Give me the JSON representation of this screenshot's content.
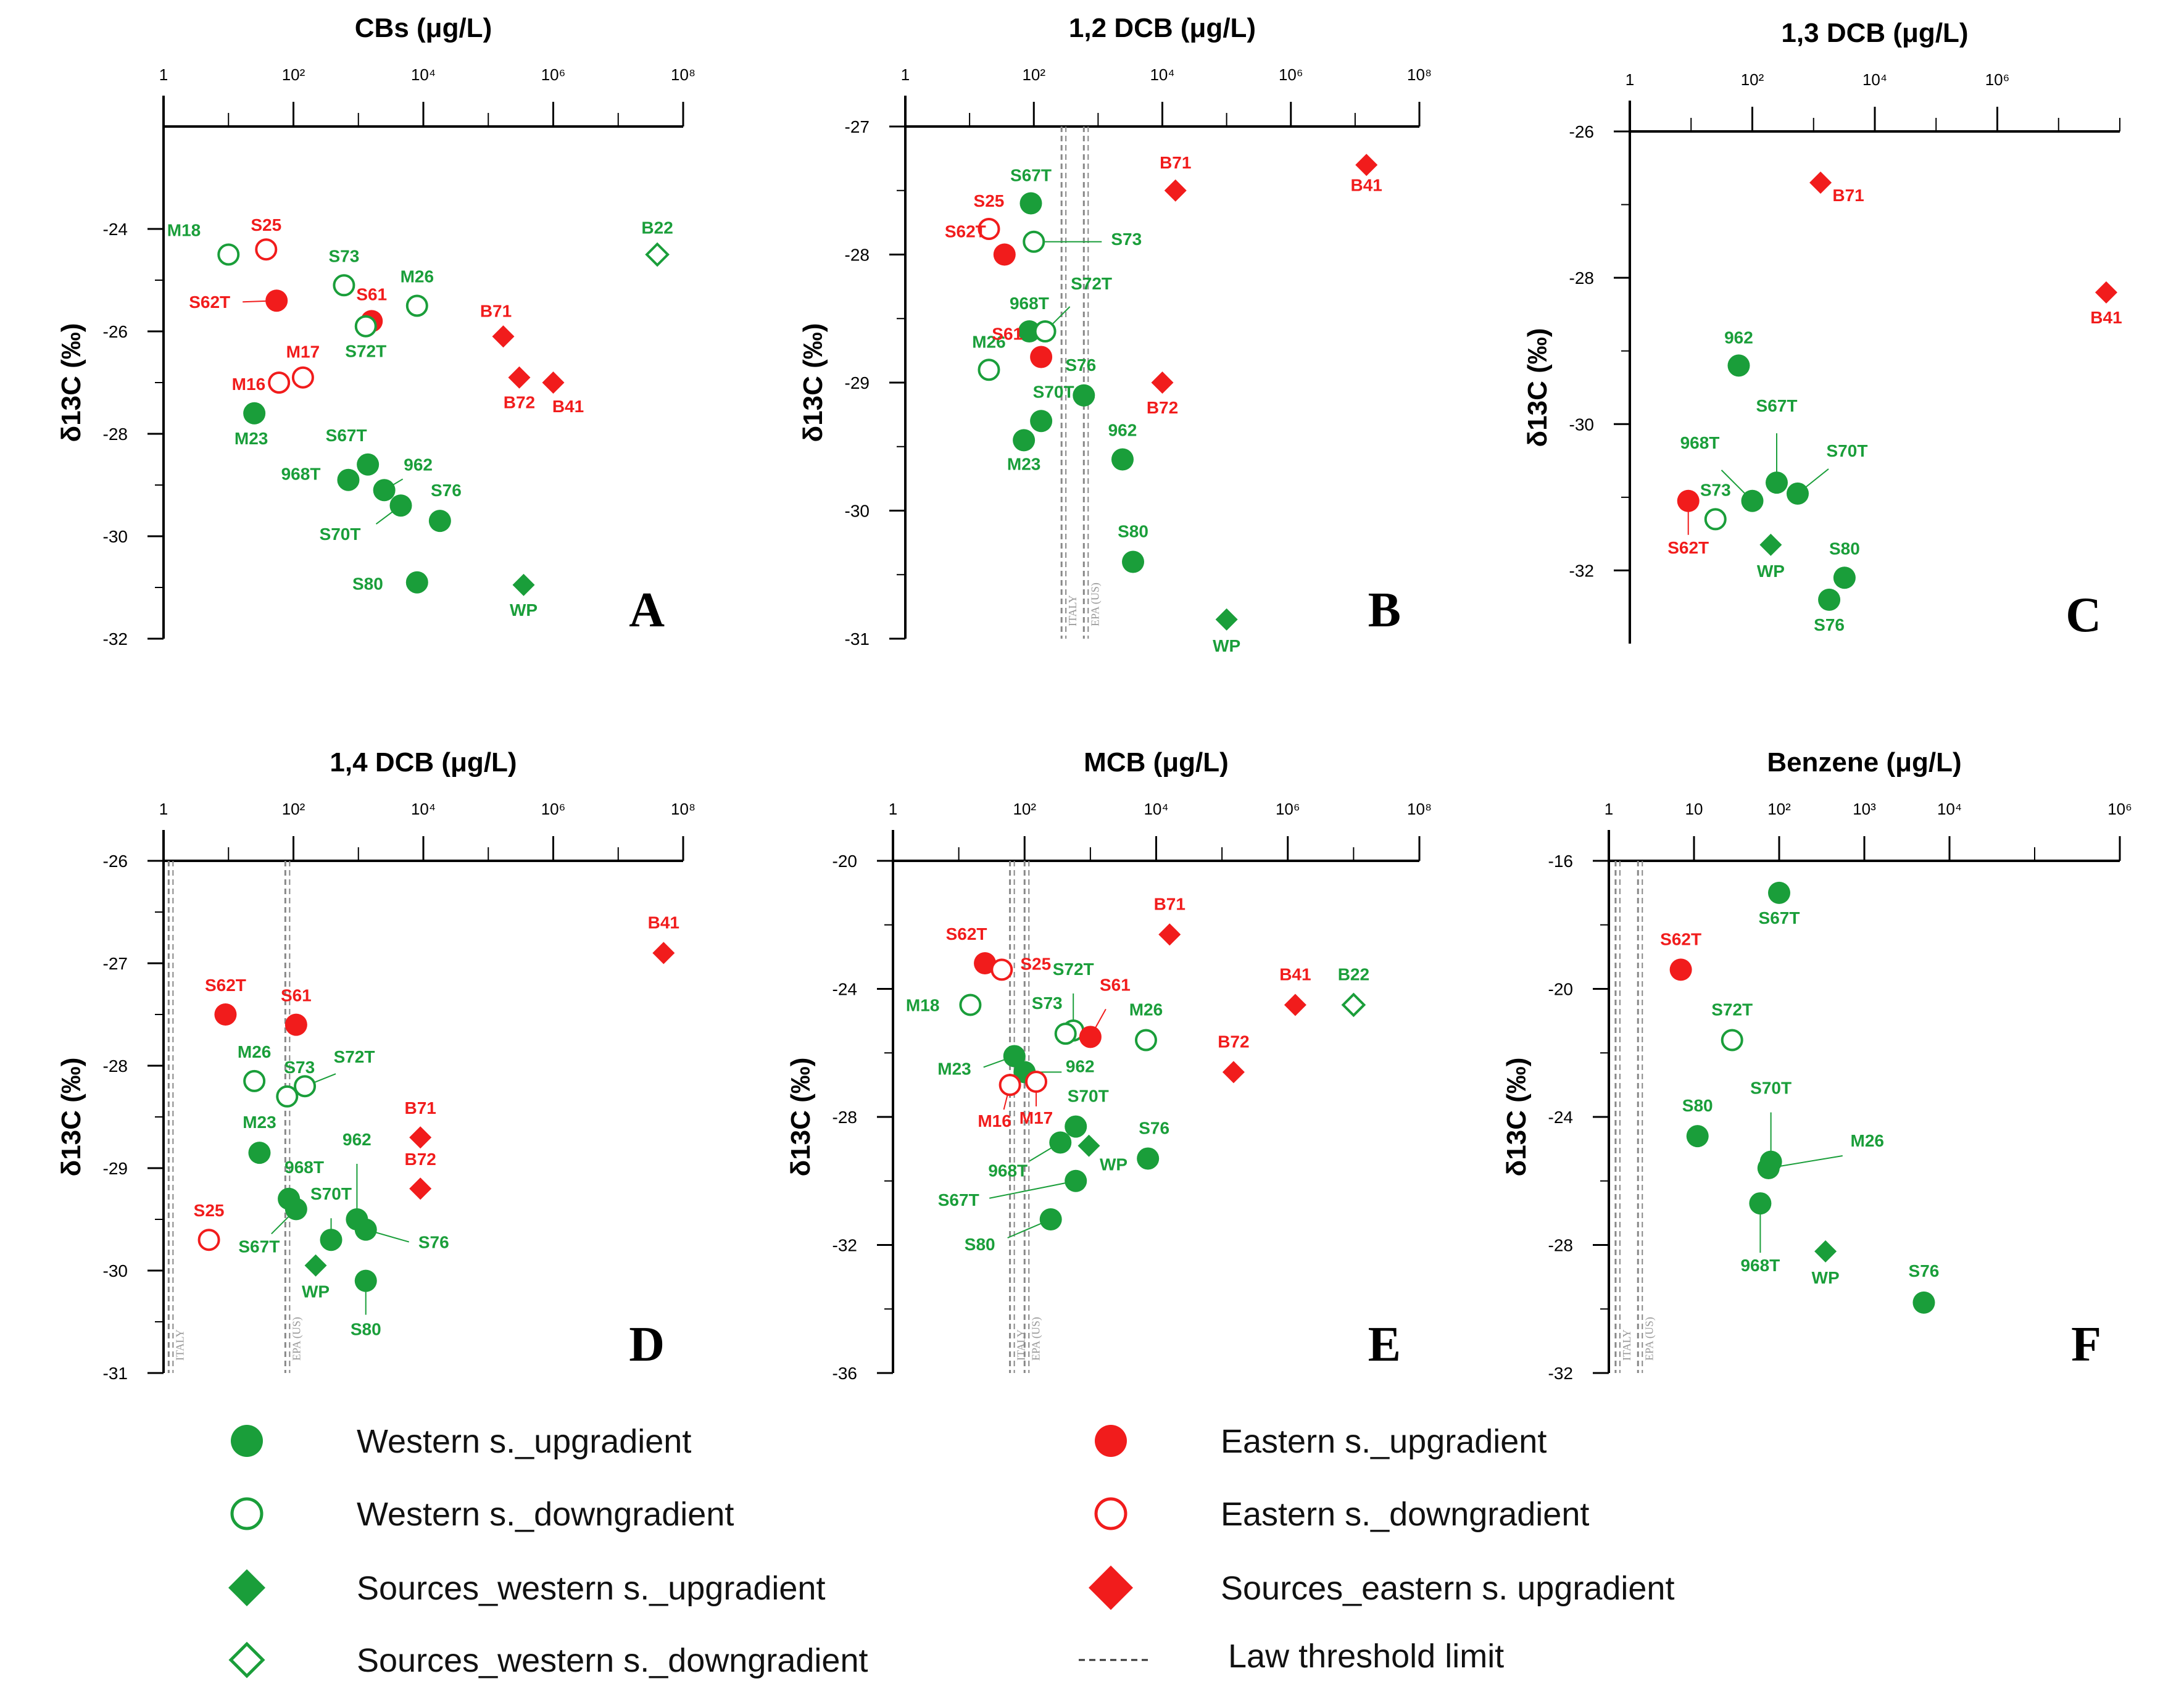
{
  "colors": {
    "western": "#1a9e3a",
    "eastern": "#f11c1c",
    "axis": "#000000",
    "threshold": "#888888"
  },
  "chart_data": [
    {
      "panel": "A",
      "type": "scatter",
      "title": "CBs (μg/L)",
      "ylabel": "δ13C (‰)",
      "xscale": "log",
      "xlim": [
        1,
        100000000
      ],
      "ylim": [
        -32,
        -22
      ],
      "xticks": [
        {
          "v": 1,
          "label": "1"
        },
        {
          "v": 100,
          "label": "10²"
        },
        {
          "v": 10000,
          "label": "10⁴"
        },
        {
          "v": 1000000,
          "label": "10⁶"
        },
        {
          "v": 100000000,
          "label": "10⁸"
        }
      ],
      "yticks": [
        {
          "v": -24,
          "label": "-24"
        },
        {
          "v": -26,
          "label": "-26"
        },
        {
          "v": -28,
          "label": "-28"
        },
        {
          "v": -30,
          "label": "-30"
        },
        {
          "v": -32,
          "label": "-32"
        }
      ],
      "thresholds": [],
      "points": [
        {
          "label": "M18",
          "x": 10,
          "y": -24.5,
          "group": "western_down"
        },
        {
          "label": "S25",
          "x": 38,
          "y": -24.4,
          "group": "eastern_down"
        },
        {
          "label": "S73",
          "x": 600,
          "y": -25.1,
          "group": "western_down"
        },
        {
          "label": "M26",
          "x": 8000,
          "y": -25.5,
          "group": "western_down"
        },
        {
          "label": "S62T",
          "x": 55,
          "y": -25.4,
          "group": "eastern_up"
        },
        {
          "label": "S61",
          "x": 1600,
          "y": -25.8,
          "group": "eastern_up"
        },
        {
          "label": "S72T",
          "x": 1300,
          "y": -25.9,
          "group": "western_down"
        },
        {
          "label": "M17",
          "x": 140,
          "y": -26.9,
          "group": "eastern_down"
        },
        {
          "label": "M16",
          "x": 60,
          "y": -27.0,
          "group": "eastern_down"
        },
        {
          "label": "B71",
          "x": 170000,
          "y": -26.1,
          "group": "eastern_src"
        },
        {
          "label": "B72",
          "x": 300000,
          "y": -26.9,
          "group": "eastern_src"
        },
        {
          "label": "B41",
          "x": 1000000,
          "y": -27.0,
          "group": "eastern_src"
        },
        {
          "label": "B22",
          "x": 40000000,
          "y": -24.5,
          "group": "western_src_down"
        },
        {
          "label": "M23",
          "x": 25,
          "y": -27.6,
          "group": "western_up"
        },
        {
          "label": "S67T",
          "x": 1400,
          "y": -28.6,
          "group": "western_up"
        },
        {
          "label": "968T",
          "x": 700,
          "y": -28.9,
          "group": "western_up"
        },
        {
          "label": "962",
          "x": 2500,
          "y": -29.1,
          "group": "western_up"
        },
        {
          "label": "S70T",
          "x": 4500,
          "y": -29.4,
          "group": "western_up"
        },
        {
          "label": "S76",
          "x": 18000,
          "y": -29.7,
          "group": "western_up"
        },
        {
          "label": "S80",
          "x": 8000,
          "y": -30.9,
          "group": "western_up"
        },
        {
          "label": "WP",
          "x": 350000,
          "y": -30.95,
          "group": "western_src"
        }
      ]
    },
    {
      "panel": "B",
      "type": "scatter",
      "title": "1,2 DCB (μg/L)",
      "ylabel": "δ13C (‰)",
      "xscale": "log",
      "xlim": [
        1,
        100000000
      ],
      "ylim": [
        -31,
        -27
      ],
      "xticks": [
        {
          "v": 1,
          "label": "1"
        },
        {
          "v": 100,
          "label": "10²"
        },
        {
          "v": 10000,
          "label": "10⁴"
        },
        {
          "v": 1000000,
          "label": "10⁶"
        },
        {
          "v": 100000000,
          "label": "10⁸"
        }
      ],
      "yticks": [
        {
          "v": -27,
          "label": "-27"
        },
        {
          "v": -28,
          "label": "-28"
        },
        {
          "v": -29,
          "label": "-29"
        },
        {
          "v": -30,
          "label": "-30"
        },
        {
          "v": -31,
          "label": "-31"
        }
      ],
      "thresholds": [
        {
          "x": 270,
          "label": "ITALY"
        },
        {
          "x": 600,
          "label": "EPA (US)"
        }
      ],
      "points": [
        {
          "label": "S67T",
          "x": 90,
          "y": -27.6,
          "group": "western_up"
        },
        {
          "label": "S25",
          "x": 20,
          "y": -27.8,
          "group": "eastern_down"
        },
        {
          "label": "S73",
          "x": 100,
          "y": -27.9,
          "group": "western_down"
        },
        {
          "label": "S62T",
          "x": 35,
          "y": -28.0,
          "group": "eastern_up"
        },
        {
          "label": "968T",
          "x": 85,
          "y": -28.6,
          "group": "western_up"
        },
        {
          "label": "S72T",
          "x": 150,
          "y": -28.6,
          "group": "western_down"
        },
        {
          "label": "M26",
          "x": 20,
          "y": -28.9,
          "group": "western_down"
        },
        {
          "label": "S61",
          "x": 130,
          "y": -28.8,
          "group": "eastern_up"
        },
        {
          "label": "S76",
          "x": 600,
          "y": -29.1,
          "group": "western_up"
        },
        {
          "label": "S70T",
          "x": 130,
          "y": -29.3,
          "group": "western_up"
        },
        {
          "label": "M23",
          "x": 70,
          "y": -29.45,
          "group": "western_up"
        },
        {
          "label": "962",
          "x": 2400,
          "y": -29.6,
          "group": "western_up"
        },
        {
          "label": "S80",
          "x": 3500,
          "y": -30.4,
          "group": "western_up"
        },
        {
          "label": "WP",
          "x": 100000,
          "y": -30.85,
          "group": "western_src"
        },
        {
          "label": "B71",
          "x": 16000,
          "y": -27.5,
          "group": "eastern_src"
        },
        {
          "label": "B72",
          "x": 10000,
          "y": -29.0,
          "group": "eastern_src"
        },
        {
          "label": "B41",
          "x": 15000000,
          "y": -27.3,
          "group": "eastern_src"
        }
      ]
    },
    {
      "panel": "C",
      "type": "scatter",
      "title": "1,3 DCB (μg/L)",
      "ylabel": "δ13C (‰)",
      "xscale": "log",
      "xlim": [
        1,
        100000000
      ],
      "ylim": [
        -33,
        -26
      ],
      "xticks": [
        {
          "v": 1,
          "label": "1"
        },
        {
          "v": 100,
          "label": "10²"
        },
        {
          "v": 10000,
          "label": "10⁴"
        },
        {
          "v": 1000000,
          "label": "10⁶"
        }
      ],
      "yticks": [
        {
          "v": -26,
          "label": "-26"
        },
        {
          "v": -28,
          "label": "-28"
        },
        {
          "v": -30,
          "label": "-30"
        },
        {
          "v": -32,
          "label": "-32"
        }
      ],
      "thresholds": [],
      "points": [
        {
          "label": "B71",
          "x": 1300,
          "y": -26.7,
          "group": "eastern_src"
        },
        {
          "label": "B41",
          "x": 60000000,
          "y": -28.2,
          "group": "eastern_src"
        },
        {
          "label": "962",
          "x": 60,
          "y": -29.2,
          "group": "western_up"
        },
        {
          "label": "S67T",
          "x": 250,
          "y": -30.8,
          "group": "western_up"
        },
        {
          "label": "968T",
          "x": 100,
          "y": -31.05,
          "group": "western_up"
        },
        {
          "label": "S70T",
          "x": 550,
          "y": -30.95,
          "group": "western_up"
        },
        {
          "label": "S73",
          "x": 25,
          "y": -31.3,
          "group": "western_down"
        },
        {
          "label": "S62T",
          "x": 9,
          "y": -31.05,
          "group": "eastern_up"
        },
        {
          "label": "WP",
          "x": 200,
          "y": -31.65,
          "group": "western_src"
        },
        {
          "label": "S80",
          "x": 3200,
          "y": -32.1,
          "group": "western_up"
        },
        {
          "label": "S76",
          "x": 1800,
          "y": -32.4,
          "group": "western_up"
        }
      ]
    },
    {
      "panel": "D",
      "type": "scatter",
      "title": "1,4 DCB (μg/L)",
      "ylabel": "δ13C (‰)",
      "xscale": "log",
      "xlim": [
        1,
        100000000
      ],
      "ylim": [
        -31,
        -26
      ],
      "xticks": [
        {
          "v": 1,
          "label": "1"
        },
        {
          "v": 100,
          "label": "10²"
        },
        {
          "v": 10000,
          "label": "10⁴"
        },
        {
          "v": 1000000,
          "label": "10⁶"
        },
        {
          "v": 100000000,
          "label": "10⁸"
        }
      ],
      "yticks": [
        {
          "v": -26,
          "label": "-26"
        },
        {
          "v": -27,
          "label": "-27"
        },
        {
          "v": -28,
          "label": "-28"
        },
        {
          "v": -29,
          "label": "-29"
        },
        {
          "v": -30,
          "label": "-30"
        },
        {
          "v": -31,
          "label": "-31"
        }
      ],
      "thresholds": [
        {
          "x": 1.2,
          "label": "ITALY"
        },
        {
          "x": 75,
          "label": "EPA (US)"
        }
      ],
      "points": [
        {
          "label": "B41",
          "x": 50000000,
          "y": -26.9,
          "group": "eastern_src"
        },
        {
          "label": "S62T",
          "x": 9,
          "y": -27.5,
          "group": "eastern_up"
        },
        {
          "label": "S61",
          "x": 110,
          "y": -27.6,
          "group": "eastern_up"
        },
        {
          "label": "M26",
          "x": 25,
          "y": -28.15,
          "group": "western_down"
        },
        {
          "label": "S73",
          "x": 80,
          "y": -28.3,
          "group": "western_down"
        },
        {
          "label": "S72T",
          "x": 150,
          "y": -28.2,
          "group": "western_down"
        },
        {
          "label": "M23",
          "x": 30,
          "y": -28.85,
          "group": "western_up"
        },
        {
          "label": "968T",
          "x": 85,
          "y": -29.3,
          "group": "western_up"
        },
        {
          "label": "S67T",
          "x": 110,
          "y": -29.4,
          "group": "western_up"
        },
        {
          "label": "962",
          "x": 950,
          "y": -29.5,
          "group": "western_up"
        },
        {
          "label": "S70T",
          "x": 380,
          "y": -29.7,
          "group": "western_up"
        },
        {
          "label": "S76",
          "x": 1300,
          "y": -29.6,
          "group": "western_up"
        },
        {
          "label": "S25",
          "x": 5,
          "y": -29.7,
          "group": "eastern_down"
        },
        {
          "label": "WP",
          "x": 220,
          "y": -29.95,
          "group": "western_src"
        },
        {
          "label": "S80",
          "x": 1300,
          "y": -30.1,
          "group": "western_up"
        },
        {
          "label": "B71",
          "x": 9000,
          "y": -28.7,
          "group": "eastern_src"
        },
        {
          "label": "B72",
          "x": 9000,
          "y": -29.2,
          "group": "eastern_src"
        }
      ]
    },
    {
      "panel": "E",
      "type": "scatter",
      "title": "MCB (μg/L)",
      "ylabel": "δ13C (‰)",
      "xscale": "log",
      "xlim": [
        1,
        100000000
      ],
      "ylim": [
        -36,
        -20
      ],
      "xticks": [
        {
          "v": 1,
          "label": "1"
        },
        {
          "v": 100,
          "label": "10²"
        },
        {
          "v": 10000,
          "label": "10⁴"
        },
        {
          "v": 1000000,
          "label": "10⁶"
        },
        {
          "v": 100000000,
          "label": "10⁸"
        }
      ],
      "yticks": [
        {
          "v": -20,
          "label": "-20"
        },
        {
          "v": -24,
          "label": "-24"
        },
        {
          "v": -28,
          "label": "-28"
        },
        {
          "v": -32,
          "label": "-32"
        },
        {
          "v": -36,
          "label": "-36"
        }
      ],
      "thresholds": [
        {
          "x": 60,
          "label": "ITALY"
        },
        {
          "x": 100,
          "label": "EPA (US)"
        }
      ],
      "points": [
        {
          "label": "S62T",
          "x": 25,
          "y": -23.2,
          "group": "eastern_up"
        },
        {
          "label": "S25",
          "x": 45,
          "y": -23.4,
          "group": "eastern_down"
        },
        {
          "label": "B71",
          "x": 16000,
          "y": -22.3,
          "group": "eastern_src"
        },
        {
          "label": "M18",
          "x": 15,
          "y": -24.5,
          "group": "western_down"
        },
        {
          "label": "S72T",
          "x": 550,
          "y": -25.3,
          "group": "western_down"
        },
        {
          "label": "S73",
          "x": 420,
          "y": -25.4,
          "group": "western_down"
        },
        {
          "label": "S61",
          "x": 1000,
          "y": -25.5,
          "group": "eastern_up"
        },
        {
          "label": "M26",
          "x": 7000,
          "y": -25.6,
          "group": "western_down"
        },
        {
          "label": "B41",
          "x": 1300000,
          "y": -24.5,
          "group": "eastern_src"
        },
        {
          "label": "B22",
          "x": 10000000,
          "y": -24.5,
          "group": "western_src_down"
        },
        {
          "label": "M23",
          "x": 70,
          "y": -26.1,
          "group": "western_up"
        },
        {
          "label": "962",
          "x": 100,
          "y": -26.6,
          "group": "western_up"
        },
        {
          "label": "M16",
          "x": 60,
          "y": -27.0,
          "group": "eastern_down"
        },
        {
          "label": "M17",
          "x": 150,
          "y": -26.9,
          "group": "eastern_down"
        },
        {
          "label": "B72",
          "x": 150000,
          "y": -26.6,
          "group": "eastern_src"
        },
        {
          "label": "S70T",
          "x": 600,
          "y": -28.3,
          "group": "western_up"
        },
        {
          "label": "968T",
          "x": 350,
          "y": -28.8,
          "group": "western_up"
        },
        {
          "label": "WP",
          "x": 950,
          "y": -28.9,
          "group": "western_src"
        },
        {
          "label": "S76",
          "x": 7500,
          "y": -29.3,
          "group": "western_up"
        },
        {
          "label": "S67T",
          "x": 600,
          "y": -30.0,
          "group": "western_up"
        },
        {
          "label": "S80",
          "x": 250,
          "y": -31.2,
          "group": "western_up"
        }
      ]
    },
    {
      "panel": "F",
      "type": "scatter",
      "title": "Benzene (μg/L)",
      "ylabel": "δ13C (‰)",
      "xscale": "log",
      "xlim": [
        1,
        1000000
      ],
      "ylim": [
        -32,
        -16
      ],
      "xticks": [
        {
          "v": 1,
          "label": "1"
        },
        {
          "v": 10,
          "label": "10"
        },
        {
          "v": 100,
          "label": "10²"
        },
        {
          "v": 1000,
          "label": "10³"
        },
        {
          "v": 10000,
          "label": "10⁴"
        },
        {
          "v": 1000000,
          "label": "10⁶"
        }
      ],
      "yticks": [
        {
          "v": -16,
          "label": "-16"
        },
        {
          "v": -20,
          "label": "-20"
        },
        {
          "v": -24,
          "label": "-24"
        },
        {
          "v": -28,
          "label": "-28"
        },
        {
          "v": -32,
          "label": "-32"
        }
      ],
      "thresholds": [
        {
          "x": 1.2,
          "label": "ITALY"
        },
        {
          "x": 2.2,
          "label": "EPA (US)"
        }
      ],
      "points": [
        {
          "label": "S67T",
          "x": 100,
          "y": -17.0,
          "group": "western_up"
        },
        {
          "label": "S62T",
          "x": 7,
          "y": -19.4,
          "group": "eastern_up"
        },
        {
          "label": "S72T",
          "x": 28,
          "y": -21.6,
          "group": "western_down"
        },
        {
          "label": "S80",
          "x": 11,
          "y": -24.6,
          "group": "western_up"
        },
        {
          "label": "S70T",
          "x": 80,
          "y": -25.4,
          "group": "western_up"
        },
        {
          "label": "M26",
          "x": 75,
          "y": -25.6,
          "group": "western_up"
        },
        {
          "label": "968T",
          "x": 60,
          "y": -26.7,
          "group": "western_up"
        },
        {
          "label": "WP",
          "x": 350,
          "y": -28.2,
          "group": "western_src"
        },
        {
          "label": "S76",
          "x": 5000,
          "y": -29.8,
          "group": "western_up"
        }
      ]
    }
  ],
  "legend": {
    "western_up": "Western s._upgradient",
    "western_down": "Western s._downgradient",
    "western_src": "Sources_western s._upgradient",
    "western_src_down": "Sources_western s._downgradient",
    "eastern_up": "Eastern s._upgradient",
    "eastern_down": "Eastern s._downgradient",
    "eastern_src": "Sources_eastern s.  upgradient",
    "threshold": "Law threshold limit"
  }
}
